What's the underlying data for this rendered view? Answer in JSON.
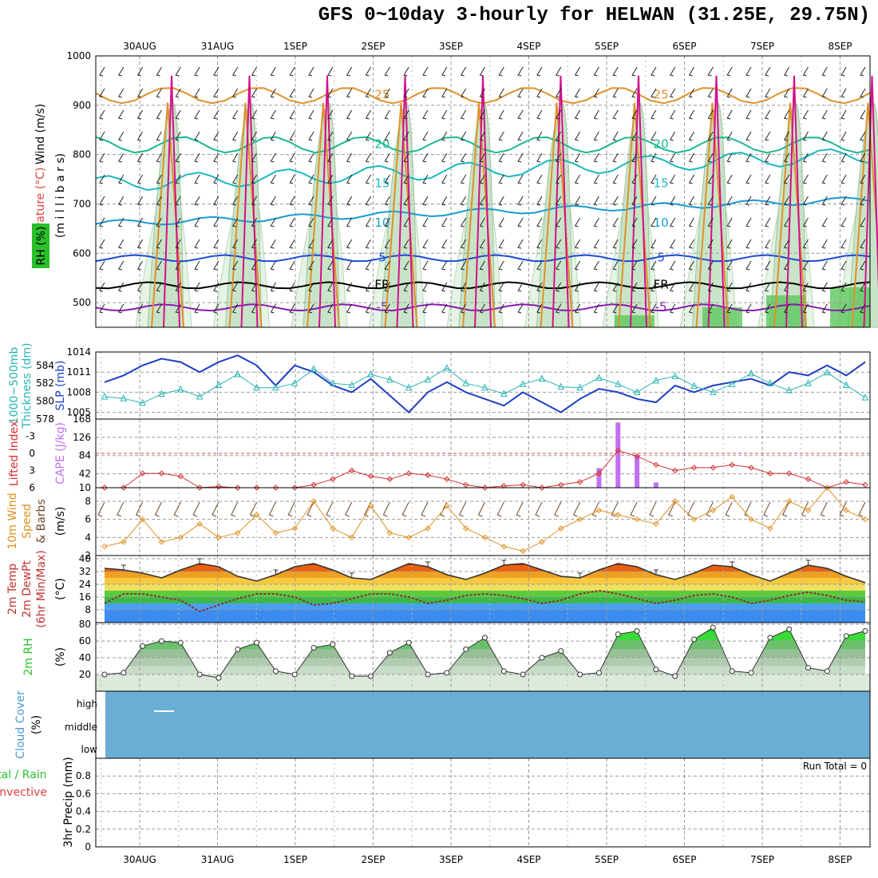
{
  "title": "GFS 0~10day 3-hourly for HELWAN (31.25E, 29.75N)",
  "dates": [
    "30AUG",
    "31AUG",
    "1SEP",
    "2SEP",
    "3SEP",
    "4SEP",
    "5SEP",
    "6SEP",
    "7SEP",
    "8SEP"
  ],
  "panel_labels": {
    "upper": {
      "wind": "Wind (m/s)",
      "temp": "Temperature (°C)",
      "rh": "RH (%)",
      "mb": "(m i l l i b a r s)"
    },
    "slp": {
      "thick": "1000~500mb",
      "thick2": "Thickness (dm)",
      "slp": "SLP (mb)"
    },
    "li": {
      "li": "Lifted Index",
      "cape": "CAPE (J/kg)"
    },
    "wind10": {
      "l1": "10m Wind",
      "l2": "Speed",
      "l3": "& Barbs",
      "unit": "(m/s)"
    },
    "temp2m": {
      "l1": "2m Temp",
      "l2": "2m DewPt",
      "l3": "(6hr Min/Max)",
      "unit": "(°C)"
    },
    "rh2m": {
      "l1": "2m RH",
      "unit": "(%)"
    },
    "cloud": {
      "l1": "Cloud Cover",
      "unit": "(%)",
      "high": "high",
      "middle": "middle",
      "low": "low"
    },
    "precip": {
      "l1": "Total / Rain",
      "l2": "Convective",
      "l3": "3hr Precip (mm)",
      "run_total": "Run Total = 0"
    }
  },
  "colors": {
    "slp": "#1d3fc4",
    "thick": "#2ab3b3",
    "li": "#d43030",
    "cape": "#c070f0",
    "wind10": "#e09020",
    "rh": "#2ac02a",
    "cloud": "#6aaed6"
  },
  "chart_data": [
    {
      "type": "contour",
      "name": "upper-air",
      "ylabel": "millibars",
      "yticks": [
        500,
        600,
        700,
        800,
        900,
        1000
      ],
      "ylim": [
        450,
        1000
      ],
      "contour_labels": [
        "-5",
        "FR",
        "5",
        "10",
        "15",
        "20",
        "25"
      ],
      "temperature_levels": [
        {
          "label": "-5",
          "color": "#8a1ab0",
          "pressure": 490
        },
        {
          "label": "FR",
          "color": "#000000",
          "pressure": 535
        },
        {
          "label": "5",
          "color": "#1a4bd4",
          "pressure": 590
        },
        {
          "label": "10",
          "color": "#1a9ad4",
          "pressure": 660
        },
        {
          "label": "15",
          "color": "#1ab8c0",
          "pressure": 740
        },
        {
          "label": "20",
          "color": "#1ab890",
          "pressure": 820
        },
        {
          "label": "25",
          "color": "#e0902a",
          "pressure": 920
        }
      ]
    },
    {
      "type": "line",
      "name": "slp-thickness",
      "yticks_left": [
        578,
        580,
        582,
        584
      ],
      "yticks_right": [
        1005,
        1008,
        1011,
        1014
      ],
      "series": [
        {
          "name": "SLP (mb)",
          "axis": "right",
          "values": [
            1009.5,
            1010.5,
            1012,
            1013,
            1012.5,
            1011,
            1012.5,
            1013.5,
            1012,
            1009,
            1012,
            1011,
            1009,
            1008,
            1010,
            1007.5,
            1005,
            1008,
            1009.5,
            1008,
            1007,
            1006,
            1008,
            1006.5,
            1005,
            1007,
            1008.5,
            1008,
            1007,
            1006.5,
            1009,
            1008,
            1009,
            1009.5,
            1010,
            1009,
            1011,
            1010.5,
            1012,
            1010.5,
            1012.5
          ]
        },
        {
          "name": "1000~500mb Thickness (dm)",
          "axis": "left",
          "values": [
            580.5,
            580.3,
            579.8,
            580.8,
            581.3,
            580.5,
            581.8,
            583,
            581.5,
            581.5,
            582,
            583.6,
            582,
            581.8,
            583,
            582.4,
            581.5,
            582.4,
            583.7,
            582,
            581.5,
            580.8,
            581.9,
            582.5,
            581.6,
            581.5,
            582.6,
            581.9,
            581,
            582.3,
            582.8,
            581.7,
            581,
            581.9,
            583.1,
            582,
            581.2,
            582,
            583.2,
            581.8,
            580.4
          ]
        }
      ]
    },
    {
      "type": "bar+line",
      "name": "lifted-index-cape",
      "yticks_left": [
        -3,
        0,
        3,
        6
      ],
      "yticks_right": [
        10,
        42,
        84,
        126,
        168
      ],
      "series": [
        {
          "name": "Lifted Index",
          "axis": "left",
          "values": [
            6,
            6,
            3.5,
            3.5,
            4,
            6,
            5.8,
            6,
            6,
            6,
            6,
            5.5,
            4.5,
            3,
            4,
            4.5,
            3.5,
            3.8,
            4.5,
            5.5,
            6,
            5.7,
            5.5,
            6,
            5.5,
            5,
            3.5,
            -0.5,
            0.5,
            2,
            3,
            2.5,
            2.5,
            2,
            2.5,
            3.5,
            3.5,
            4.5,
            6,
            5,
            5.5
          ]
        },
        {
          "name": "CAPE (J/kg)",
          "axis": "right",
          "type": "bar",
          "values": [
            0,
            0,
            0,
            0,
            0,
            0,
            0,
            0,
            0,
            0,
            0,
            0,
            0,
            0,
            0,
            0,
            0,
            0,
            0,
            0,
            0,
            0,
            0,
            0,
            0,
            0,
            55,
            160,
            85,
            22,
            0,
            0,
            0,
            0,
            0,
            0,
            0,
            0,
            0,
            0,
            0
          ]
        }
      ]
    },
    {
      "type": "line",
      "name": "10m-wind",
      "yticks": [
        2,
        4,
        6,
        8
      ],
      "series": [
        {
          "name": "10m Wind Speed",
          "values": [
            3,
            3.5,
            6,
            3.5,
            4,
            5.5,
            4,
            4.5,
            6.5,
            4.5,
            5,
            8,
            5,
            4,
            7.5,
            4.5,
            4,
            5,
            7.5,
            5,
            4,
            3,
            2.5,
            3.5,
            5,
            6,
            7,
            6.5,
            6,
            5.5,
            8,
            6,
            7,
            8.5,
            6,
            5,
            8,
            7,
            9.5,
            7,
            6
          ]
        }
      ]
    },
    {
      "type": "area",
      "name": "2m-temp-dewpt",
      "yticks": [
        8,
        16,
        24,
        32,
        40
      ],
      "series": [
        {
          "name": "2m Temp",
          "values": [
            34,
            33,
            31,
            28,
            33,
            37,
            35,
            29,
            26,
            30,
            35,
            37,
            33,
            28,
            27,
            32,
            37,
            35,
            30,
            27,
            31,
            36,
            37,
            33,
            29,
            28,
            33,
            37,
            35,
            30,
            27,
            31,
            36,
            35,
            30,
            26,
            31,
            36,
            34,
            29,
            25
          ]
        },
        {
          "name": "2m DewPt",
          "values": [
            12,
            18,
            18,
            16,
            14,
            7,
            11,
            15,
            18,
            18,
            16,
            11,
            12,
            15,
            18,
            18,
            16,
            12,
            14,
            17,
            18,
            17,
            15,
            12,
            14,
            18,
            20,
            18,
            15,
            12,
            14,
            17,
            18,
            16,
            12,
            14,
            17,
            19,
            17,
            14,
            13
          ]
        }
      ]
    },
    {
      "type": "area",
      "name": "2m-rh",
      "yticks": [
        20,
        40,
        60,
        80
      ],
      "series": [
        {
          "name": "2m RH",
          "values": [
            20,
            22,
            54,
            60,
            58,
            20,
            16,
            50,
            58,
            24,
            20,
            52,
            56,
            18,
            18,
            46,
            58,
            20,
            22,
            50,
            64,
            24,
            20,
            40,
            48,
            20,
            22,
            68,
            72,
            26,
            18,
            62,
            76,
            24,
            22,
            64,
            74,
            28,
            24,
            66,
            72
          ]
        }
      ]
    },
    {
      "type": "heatmap",
      "name": "cloud-cover",
      "rows": [
        "high",
        "middle",
        "low"
      ],
      "values": "0"
    },
    {
      "type": "bar",
      "name": "3hr-precip",
      "yticks": [
        0,
        0.2,
        0.4,
        0.6,
        0.8
      ],
      "ylim": [
        0,
        1
      ],
      "values": [
        0
      ]
    }
  ]
}
